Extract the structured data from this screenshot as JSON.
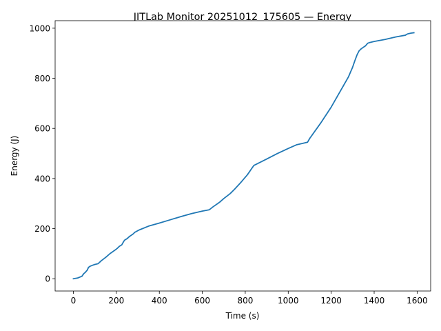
{
  "chart_data": {
    "type": "line",
    "title": "JITLab Monitor 20251012_175605 — Energy",
    "xlabel": "Time (s)",
    "ylabel": "Energy (J)",
    "xlim": [
      -85,
      1663
    ],
    "ylim": [
      -49,
      1030
    ],
    "xticks": [
      0,
      200,
      400,
      600,
      800,
      1000,
      1200,
      1400,
      1600
    ],
    "yticks": [
      0,
      200,
      400,
      600,
      800,
      1000
    ],
    "grid": false,
    "series": [
      {
        "color": "#1f77b4",
        "x": [
          0,
          20,
          40,
          48,
          55,
          65,
          70,
          78,
          90,
          100,
          115,
          130,
          150,
          170,
          190,
          198,
          205,
          215,
          225,
          235,
          240,
          250,
          260,
          272,
          280,
          285,
          292,
          300,
          310,
          350,
          400,
          450,
          500,
          550,
          600,
          632,
          650,
          680,
          700,
          730,
          750,
          780,
          800,
          810,
          830,
          840,
          900,
          950,
          1000,
          1040,
          1090,
          1100,
          1150,
          1200,
          1250,
          1280,
          1300,
          1310,
          1320,
          1330,
          1340,
          1360,
          1370,
          1380,
          1400,
          1450,
          1500,
          1545,
          1555,
          1570,
          1585
        ],
        "y": [
          0,
          3,
          10,
          20,
          25,
          35,
          45,
          50,
          54,
          57,
          60,
          72,
          85,
          100,
          112,
          117,
          122,
          130,
          135,
          150,
          155,
          160,
          168,
          175,
          180,
          185,
          188,
          192,
          196,
          210,
          222,
          235,
          248,
          260,
          270,
          275,
          287,
          305,
          320,
          340,
          357,
          385,
          405,
          415,
          440,
          452,
          478,
          500,
          520,
          535,
          545,
          560,
          620,
          685,
          760,
          805,
          845,
          870,
          893,
          910,
          918,
          930,
          940,
          943,
          947,
          955,
          965,
          972,
          977,
          980,
          982
        ]
      }
    ]
  }
}
